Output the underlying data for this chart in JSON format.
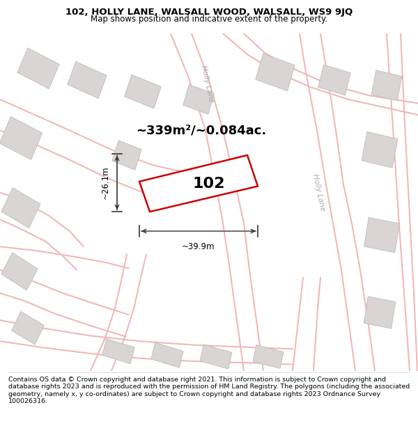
{
  "title_line1": "102, HOLLY LANE, WALSALL WOOD, WALSALL, WS9 9JQ",
  "title_line2": "Map shows position and indicative extent of the property.",
  "footer_text": "Contains OS data © Crown copyright and database right 2021. This information is subject to Crown copyright and database rights 2023 and is reproduced with the permission of HM Land Registry. The polygons (including the associated geometry, namely x, y co-ordinates) are subject to Crown copyright and database rights 2023 Ordnance Survey 100026316.",
  "area_text": "~339m²/~0.084ac.",
  "label_102": "102",
  "dim_width": "~39.9m",
  "dim_height": "~26.1m",
  "map_bg": "#f7f4f4",
  "plot_fill": "#ffffff",
  "plot_edge": "#cc0000",
  "road_color": "#f0b8b8",
  "road_fill": "#f7f4f4",
  "building_color": "#d9d5d5",
  "building_edge": "#c0bbbb",
  "holly_lane_label_top": "Holly Lane",
  "holly_lane_label_right": "Holly Lane",
  "title_fontsize": 9.5,
  "subtitle_fontsize": 8.5,
  "footer_fontsize": 6.8,
  "area_fontsize": 13,
  "label_fontsize": 16,
  "dim_fontsize": 8.5,
  "road_lw": 1.5,
  "plot_lw": 1.8
}
